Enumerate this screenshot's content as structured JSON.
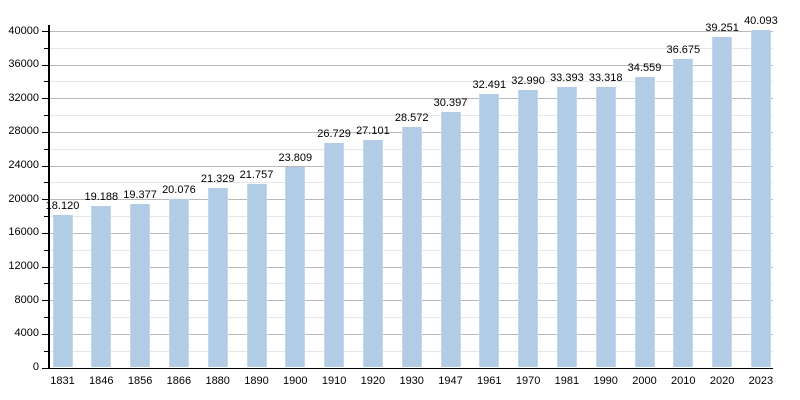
{
  "chart_data": {
    "type": "bar",
    "title": "",
    "xlabel": "",
    "ylabel": "",
    "categories": [
      "1831",
      "1846",
      "1856",
      "1866",
      "1880",
      "1890",
      "1900",
      "1910",
      "1920",
      "1930",
      "1947",
      "1961",
      "1970",
      "1981",
      "1990",
      "2000",
      "2010",
      "2020",
      "2023"
    ],
    "values": [
      18120,
      19188,
      19377,
      20076,
      21329,
      21757,
      23809,
      26729,
      27101,
      28572,
      30397,
      32491,
      32990,
      33393,
      33318,
      34559,
      36675,
      39251,
      40093
    ],
    "value_labels": [
      "18.120",
      "19.188",
      "19.377",
      "20.076",
      "21.329",
      "21.757",
      "23.809",
      "26.729",
      "27.101",
      "28.572",
      "30.397",
      "32.491",
      "32.990",
      "33.393",
      "33.318",
      "34.559",
      "36.675",
      "39.251",
      "40.093"
    ],
    "ylim": [
      0,
      40000
    ],
    "y_major_step": 4000,
    "y_minor_step": 2000,
    "y_tick_labels": [
      "0",
      "4000",
      "8000",
      "12000",
      "16000",
      "20000",
      "24000",
      "28000",
      "32000",
      "36000",
      "40000"
    ],
    "grid": true,
    "legend": false,
    "colors": {
      "bar_fill": "#b3cce6",
      "bar_edge": "#c3d7ec",
      "major_gridline": "#b9b9b9",
      "minor_gridline": "#e6e6e6",
      "axis": "#000000",
      "text": "#000000",
      "background": "#ffffff"
    }
  }
}
